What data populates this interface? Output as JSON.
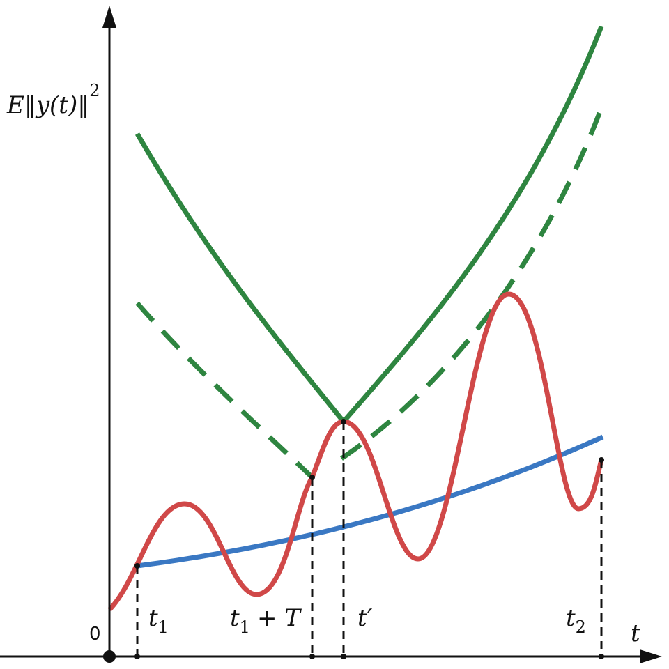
{
  "y_axis_label": {
    "main": "E‖y(t)‖",
    "sup": "2"
  },
  "x_axis_label": "t",
  "origin_label": "0",
  "marks": [
    {
      "base": "t",
      "sub": "1"
    },
    {
      "base": "t",
      "sub": "1",
      "rest": "+ T"
    },
    {
      "base": "t′"
    },
    {
      "base": "t",
      "sub": "2"
    }
  ]
}
